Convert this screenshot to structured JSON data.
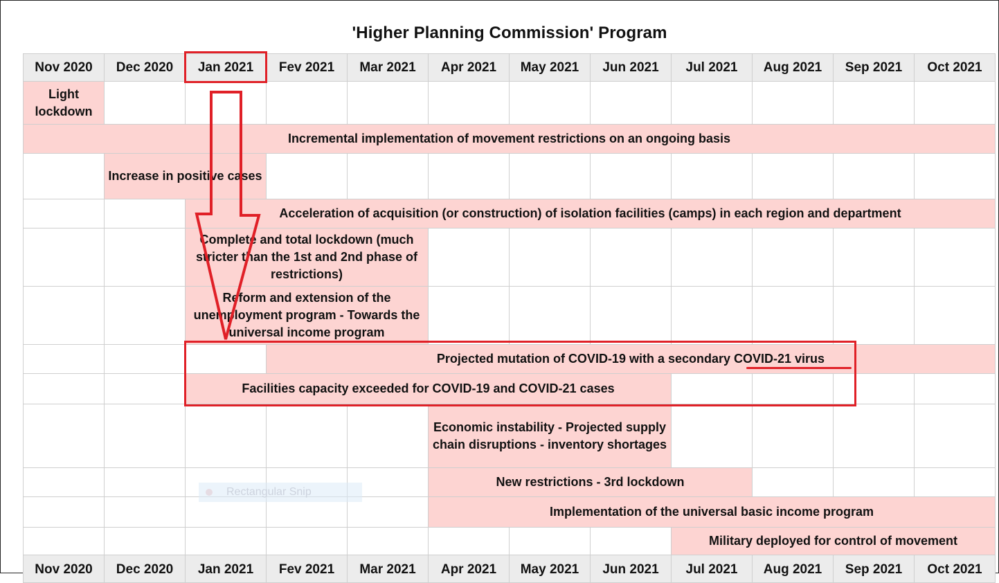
{
  "title": "'Higher Planning Commission' Program",
  "months": [
    "Nov 2020",
    "Dec 2020",
    "Jan 2021",
    "Fev 2021",
    "Mar 2021",
    "Apr 2021",
    "May 2021",
    "Jun 2021",
    "Jul 2021",
    "Aug 2021",
    "Sep 2021",
    "Oct 2021"
  ],
  "rows": [
    {
      "start": 0,
      "span": 1,
      "text": "Light lockdown"
    },
    {
      "start": 0,
      "span": 12,
      "text": "Incremental implementation of movement restrictions on an ongoing basis"
    },
    {
      "start": 1,
      "span": 2,
      "text": "Increase in positive cases"
    },
    {
      "start": 2,
      "span": 10,
      "text": "Acceleration of acquisition (or construction) of isolation facilities (camps) in each region and department"
    },
    {
      "start": 2,
      "span": 3,
      "text": "Complete and total lockdown (much stricter than the 1st and 2nd phase of restrictions)"
    },
    {
      "start": 2,
      "span": 3,
      "text": "Reform and extension of the unemployment program - Towards the universal income program"
    },
    {
      "start": 3,
      "span": 9,
      "text": "Projected mutation of COVID-19 with a secondary COVID-21 virus"
    },
    {
      "start": 2,
      "span": 6,
      "text": "Facilities capacity exceeded for COVID-19 and COVID-21 cases"
    },
    {
      "start": 5,
      "span": 3,
      "text": "Economic instability - Projected supply chain disruptions - inventory shortages"
    },
    {
      "start": 5,
      "span": 4,
      "text": "New restrictions - 3rd lockdown"
    },
    {
      "start": 5,
      "span": 7,
      "text": "Implementation of the universal basic income program"
    },
    {
      "start": 8,
      "span": 4,
      "text": "Military deployed for control of movement"
    }
  ],
  "snip_label": "Rectangular Snip",
  "colors": {
    "bar": "#fdd4d2",
    "header": "#ececec",
    "annotation": "#e02027"
  }
}
